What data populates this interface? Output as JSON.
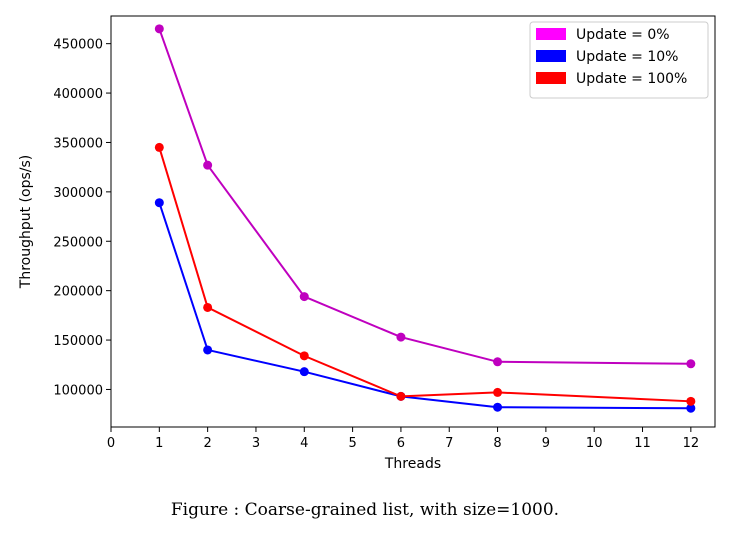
{
  "chart_data": {
    "type": "line",
    "xlabel": "Threads",
    "ylabel": "Throughput (ops/s)",
    "xlim": [
      0,
      12.5
    ],
    "ylim": [
      62000,
      478000
    ],
    "xticks": [
      0,
      1,
      2,
      3,
      4,
      5,
      6,
      7,
      8,
      9,
      10,
      11,
      12
    ],
    "yticks": [
      100000,
      150000,
      200000,
      250000,
      300000,
      350000,
      400000,
      450000
    ],
    "grid": false,
    "legend": "top-right",
    "x": [
      1,
      2,
      4,
      6,
      8,
      12
    ],
    "series": [
      {
        "name": "Update = 0%",
        "color": "#bf00bf",
        "legend_color": "#ff00ff",
        "values": [
          465000,
          327000,
          194000,
          153000,
          128000,
          126000
        ]
      },
      {
        "name": "Update = 10%",
        "color": "#0000ff",
        "legend_color": "#0000ff",
        "values": [
          289000,
          140000,
          118000,
          93000,
          82000,
          81000
        ]
      },
      {
        "name": "Update = 100%",
        "color": "#ff0000",
        "legend_color": "#ff0000",
        "values": [
          345000,
          183000,
          134000,
          93000,
          97000,
          88000
        ]
      }
    ]
  },
  "caption": "Figure   : Coarse-grained list, with size=1000."
}
